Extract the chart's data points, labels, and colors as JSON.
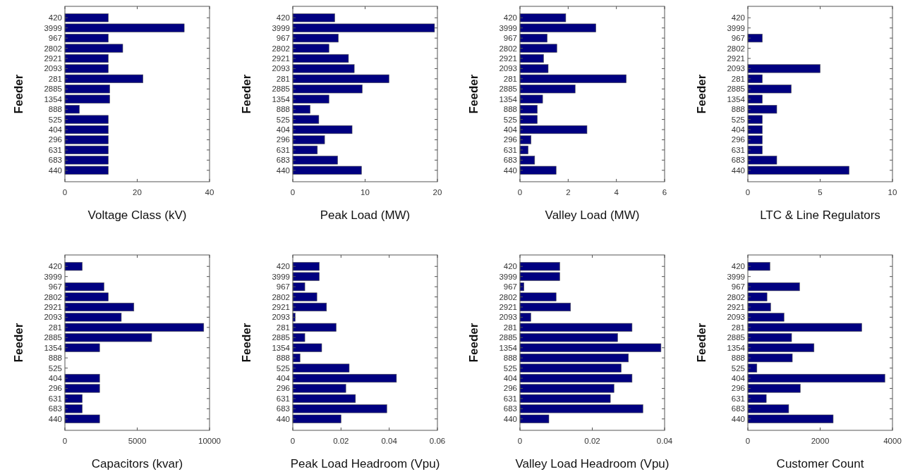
{
  "chart_data": [
    {
      "type": "bar",
      "orientation": "horizontal",
      "xlabel": "Voltage Class (kV)",
      "ylabel": "Feeder",
      "color": "#000080",
      "categories": [
        "420",
        "3999",
        "967",
        "2802",
        "2921",
        "2093",
        "281",
        "2885",
        "1354",
        "888",
        "525",
        "404",
        "296",
        "631",
        "683",
        "440"
      ],
      "values": [
        12,
        33,
        12,
        16,
        12,
        12,
        21.6,
        12.4,
        12.4,
        4,
        12,
        12,
        12,
        12,
        12,
        12
      ],
      "xlim": [
        0,
        40
      ],
      "xticks": [
        0,
        20,
        40
      ]
    },
    {
      "type": "bar",
      "orientation": "horizontal",
      "xlabel": "Peak Load (MW)",
      "ylabel": "Feeder",
      "color": "#000080",
      "categories": [
        "420",
        "3999",
        "967",
        "2802",
        "2921",
        "2093",
        "281",
        "2885",
        "1354",
        "888",
        "525",
        "404",
        "296",
        "631",
        "683",
        "440"
      ],
      "values": [
        5.8,
        19.6,
        6.3,
        5.0,
        7.7,
        8.5,
        13.3,
        9.6,
        5.0,
        2.4,
        3.6,
        8.2,
        4.4,
        3.4,
        6.2,
        9.5
      ],
      "xlim": [
        0,
        20
      ],
      "xticks": [
        0,
        10,
        20
      ]
    },
    {
      "type": "bar",
      "orientation": "horizontal",
      "xlabel": "Valley Load (MW)",
      "ylabel": "Feeder",
      "color": "#000080",
      "categories": [
        "420",
        "3999",
        "967",
        "2802",
        "2921",
        "2093",
        "281",
        "2885",
        "1354",
        "888",
        "525",
        "404",
        "296",
        "631",
        "683",
        "440"
      ],
      "values": [
        1.9,
        3.15,
        1.13,
        1.53,
        0.98,
        1.17,
        4.41,
        2.29,
        0.94,
        0.72,
        0.72,
        2.78,
        0.46,
        0.34,
        0.61,
        1.5
      ],
      "xlim": [
        0,
        6
      ],
      "xticks": [
        0,
        2,
        4,
        6
      ]
    },
    {
      "type": "bar",
      "orientation": "horizontal",
      "xlabel": "LTC & Line Regulators",
      "ylabel": "Feeder",
      "color": "#000080",
      "categories": [
        "420",
        "3999",
        "967",
        "2802",
        "2921",
        "2093",
        "281",
        "2885",
        "1354",
        "888",
        "525",
        "404",
        "296",
        "631",
        "683",
        "440"
      ],
      "values": [
        0,
        0,
        1,
        0,
        0,
        5,
        1,
        3,
        1,
        2,
        1,
        1,
        1,
        1,
        2,
        7
      ],
      "xlim": [
        0,
        10
      ],
      "xticks": [
        0,
        5,
        10
      ]
    },
    {
      "type": "bar",
      "orientation": "horizontal",
      "xlabel": "Capacitors (kvar)",
      "ylabel": "Feeder",
      "color": "#000080",
      "categories": [
        "420",
        "3999",
        "967",
        "2802",
        "2921",
        "2093",
        "281",
        "2885",
        "1354",
        "888",
        "525",
        "404",
        "296",
        "631",
        "683",
        "440"
      ],
      "values": [
        1200,
        0,
        2700,
        3000,
        4770,
        3900,
        9600,
        6000,
        2400,
        0,
        0,
        2400,
        2400,
        1200,
        1200,
        2400
      ],
      "xlim": [
        0,
        10000
      ],
      "xticks": [
        0,
        5000,
        10000
      ]
    },
    {
      "type": "bar",
      "orientation": "horizontal",
      "xlabel": "Peak Load Headroom (Vpu)",
      "ylabel": "Feeder",
      "color": "#000080",
      "categories": [
        "420",
        "3999",
        "967",
        "2802",
        "2921",
        "2093",
        "281",
        "2885",
        "1354",
        "888",
        "525",
        "404",
        "296",
        "631",
        "683",
        "440"
      ],
      "values": [
        0.011,
        0.011,
        0.005,
        0.01,
        0.014,
        0.001,
        0.018,
        0.005,
        0.012,
        0.003,
        0.0234,
        0.043,
        0.022,
        0.026,
        0.039,
        0.02
      ],
      "xlim": [
        0,
        0.06
      ],
      "xticks": [
        0,
        0.02,
        0.04,
        0.06
      ]
    },
    {
      "type": "bar",
      "orientation": "horizontal",
      "xlabel": "Valley Load Headroom (Vpu)",
      "ylabel": "Feeder",
      "color": "#000080",
      "categories": [
        "420",
        "3999",
        "967",
        "2802",
        "2921",
        "2093",
        "281",
        "2885",
        "1354",
        "888",
        "525",
        "404",
        "296",
        "631",
        "683",
        "440"
      ],
      "values": [
        0.011,
        0.011,
        0.0011,
        0.01,
        0.014,
        0.003,
        0.031,
        0.027,
        0.039,
        0.03,
        0.028,
        0.031,
        0.026,
        0.025,
        0.034,
        0.008
      ],
      "xlim": [
        0,
        0.04
      ],
      "xticks": [
        0,
        0.02,
        0.04
      ]
    },
    {
      "type": "bar",
      "orientation": "horizontal",
      "xlabel": "Customer Count",
      "ylabel": "Feeder",
      "color": "#000080",
      "categories": [
        "420",
        "3999",
        "967",
        "2802",
        "2921",
        "2093",
        "281",
        "2885",
        "1354",
        "888",
        "525",
        "404",
        "296",
        "631",
        "683",
        "440"
      ],
      "values": [
        610,
        0,
        1430,
        530,
        630,
        1000,
        3150,
        1210,
        1830,
        1230,
        250,
        3790,
        1450,
        510,
        1130,
        2360
      ],
      "xlim": [
        0,
        4000
      ],
      "xticks": [
        0,
        2000,
        4000
      ]
    }
  ]
}
